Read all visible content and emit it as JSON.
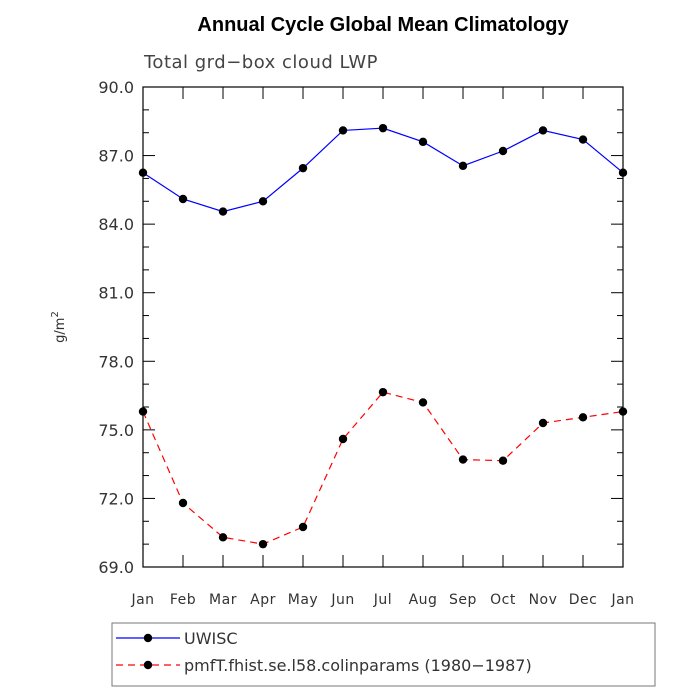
{
  "chart_data": {
    "type": "line",
    "title": "Annual Cycle Global Mean Climatology",
    "subtitle": "Total grd−box cloud LWP",
    "ylabel": "g/m",
    "ylabel_sup": "2",
    "xlabel": "",
    "ylim": [
      69.0,
      90.0
    ],
    "yticks": [
      69.0,
      72.0,
      75.0,
      78.0,
      81.0,
      84.0,
      87.0,
      90.0
    ],
    "ytick_labels": [
      "69.0",
      "72.0",
      "75.0",
      "78.0",
      "81.0",
      "84.0",
      "87.0",
      "90.0"
    ],
    "categories": [
      "Jan",
      "Feb",
      "Mar",
      "Apr",
      "May",
      "Jun",
      "Jul",
      "Aug",
      "Sep",
      "Oct",
      "Nov",
      "Dec",
      "Jan"
    ],
    "series": [
      {
        "name": "UWISC",
        "color": "#0000ff",
        "dash": "solid",
        "values": [
          86.25,
          85.1,
          84.55,
          85.0,
          86.45,
          88.1,
          88.2,
          87.6,
          86.55,
          87.2,
          88.1,
          87.7,
          86.25
        ]
      },
      {
        "name": "pmfT.fhist.se.l58.colinparams (1980−1987)",
        "color": "#ff0000",
        "dash": "dashed",
        "values": [
          75.8,
          71.8,
          70.3,
          70.0,
          70.75,
          74.6,
          76.65,
          76.2,
          73.7,
          73.65,
          75.3,
          75.55,
          75.8
        ]
      }
    ],
    "legend_position": "bottom"
  }
}
